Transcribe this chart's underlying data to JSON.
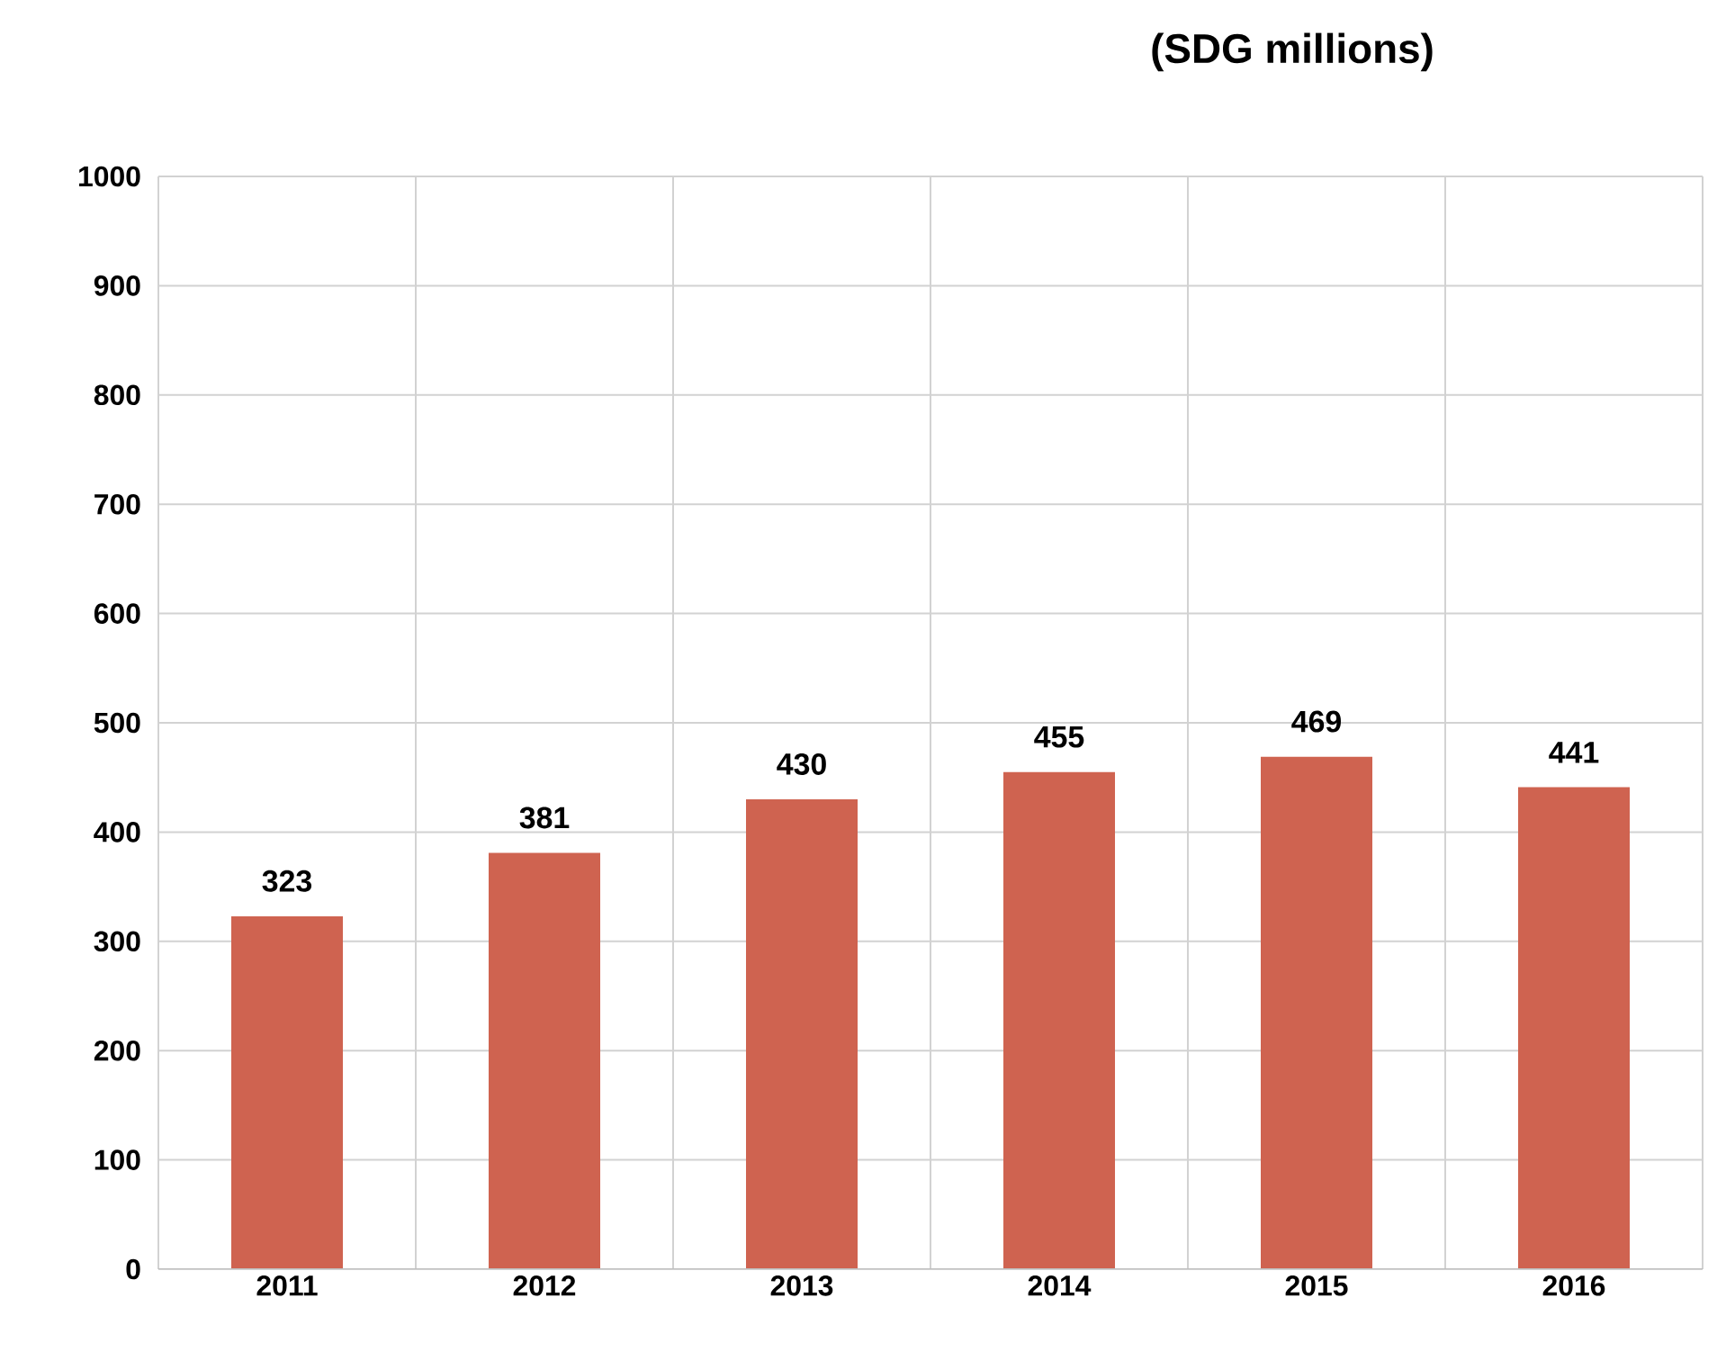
{
  "chart_data": {
    "type": "bar",
    "title": "(SDG millions)",
    "categories": [
      "2011",
      "2012",
      "2013",
      "2014",
      "2015",
      "2016"
    ],
    "values": [
      323,
      381,
      430,
      455,
      469,
      441
    ],
    "color": "#cf6350",
    "ylim": [
      0,
      1000
    ],
    "yticks": [
      0,
      100,
      200,
      300,
      400,
      500,
      600,
      700,
      800,
      900,
      1000
    ],
    "grid": true,
    "data_labels": true
  }
}
